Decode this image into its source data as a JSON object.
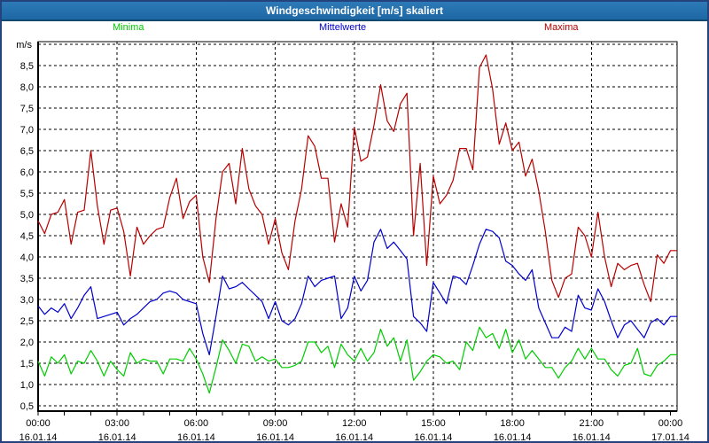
{
  "window": {
    "title": "Windgeschwindigkeit [m/s] skaliert"
  },
  "legend": [
    {
      "label": "Minima",
      "color": "#00cc00"
    },
    {
      "label": "Mittelwerte",
      "color": "#0000cd"
    },
    {
      "label": "Maxima",
      "color": "#b80000"
    }
  ],
  "colors": {
    "titlebar_top": "#2d7ab8",
    "titlebar_bottom": "#1d67a4",
    "outer_border": "#24427c",
    "grid": "#000000",
    "plot_background": "#ffffff"
  },
  "chart_data": {
    "type": "line",
    "title": "Windgeschwindigkeit [m/s] skaliert",
    "ylabel": "m/s",
    "ylim": [
      0.5,
      9.0
    ],
    "ytick_step": 0.5,
    "ytick_labels": [
      "0,5",
      "1,0",
      "1,5",
      "2,0",
      "2,5",
      "3,0",
      "3,5",
      "4,0",
      "4,5",
      "5,0",
      "5,5",
      "6,0",
      "6,5",
      "7,0",
      "7,5",
      "8,0",
      "8,5"
    ],
    "grid": "dashed",
    "legend_position": "top",
    "x_start_hour": 0,
    "x_end_hour": 24,
    "sample_minutes": 15,
    "minor_tick_every_hours": 1,
    "xticks": [
      {
        "hour": 0,
        "time": "00:00",
        "date": "16.01.14"
      },
      {
        "hour": 3,
        "time": "03:00",
        "date": "16.01.14"
      },
      {
        "hour": 6,
        "time": "06:00",
        "date": "16.01.14"
      },
      {
        "hour": 9,
        "time": "09:00",
        "date": "16.01.14"
      },
      {
        "hour": 12,
        "time": "12:00",
        "date": "16.01.14"
      },
      {
        "hour": 15,
        "time": "15:00",
        "date": "16.01.14"
      },
      {
        "hour": 18,
        "time": "18:00",
        "date": "16.01.14"
      },
      {
        "hour": 21,
        "time": "21:00",
        "date": "16.01.14"
      },
      {
        "hour": 24,
        "time": "00:00",
        "date": "17.01.14"
      }
    ],
    "series": [
      {
        "name": "Minima",
        "color": "#00cc00",
        "values": [
          1.55,
          1.2,
          1.65,
          1.5,
          1.7,
          1.25,
          1.55,
          1.5,
          1.8,
          1.55,
          1.2,
          1.55,
          1.35,
          1.2,
          1.75,
          1.5,
          1.6,
          1.55,
          1.55,
          1.25,
          1.6,
          1.6,
          1.55,
          1.85,
          1.6,
          1.25,
          0.8,
          1.4,
          2.05,
          1.8,
          1.5,
          1.95,
          1.9,
          1.55,
          1.65,
          1.55,
          1.6,
          1.4,
          1.4,
          1.45,
          1.55,
          2.0,
          2.0,
          1.75,
          1.9,
          1.4,
          1.95,
          1.7,
          1.55,
          1.85,
          1.55,
          1.75,
          2.3,
          1.9,
          2.1,
          1.55,
          2.05,
          1.1,
          1.3,
          1.55,
          1.7,
          1.65,
          1.5,
          1.55,
          1.35,
          2.0,
          1.8,
          2.35,
          2.1,
          2.2,
          1.85,
          2.3,
          1.75,
          2.05,
          1.6,
          1.8,
          1.6,
          1.4,
          1.4,
          1.15,
          1.4,
          1.55,
          1.85,
          1.6,
          1.85,
          1.6,
          1.6,
          1.35,
          1.2,
          1.45,
          1.5,
          1.85,
          1.25,
          1.2,
          1.45,
          1.55,
          1.7
        ]
      },
      {
        "name": "Mittelwerte",
        "color": "#0000cd",
        "values": [
          2.85,
          2.65,
          2.8,
          2.7,
          2.9,
          2.55,
          2.8,
          3.1,
          3.3,
          2.55,
          2.6,
          2.65,
          2.7,
          2.4,
          2.55,
          2.65,
          2.8,
          2.95,
          3.0,
          3.15,
          3.2,
          3.15,
          3.0,
          2.95,
          2.9,
          2.2,
          1.7,
          2.6,
          3.55,
          3.25,
          3.3,
          3.4,
          3.25,
          3.1,
          2.95,
          2.55,
          2.95,
          2.5,
          2.4,
          2.55,
          2.9,
          3.55,
          3.3,
          3.45,
          3.5,
          3.55,
          2.55,
          2.8,
          3.55,
          3.2,
          3.45,
          4.35,
          4.65,
          4.2,
          4.35,
          4.15,
          3.95,
          2.6,
          2.45,
          2.25,
          3.4,
          3.15,
          2.9,
          3.55,
          3.5,
          3.35,
          3.8,
          4.3,
          4.65,
          4.6,
          4.45,
          3.9,
          3.8,
          3.6,
          3.45,
          3.7,
          2.8,
          2.45,
          2.1,
          2.1,
          2.35,
          2.25,
          3.1,
          2.8,
          2.75,
          3.25,
          2.95,
          2.5,
          2.1,
          2.4,
          2.5,
          2.3,
          2.1,
          2.45,
          2.55,
          2.4,
          2.6
        ]
      },
      {
        "name": "Maxima",
        "color": "#b80000",
        "values": [
          4.85,
          4.55,
          5.0,
          5.05,
          5.35,
          4.3,
          5.05,
          5.1,
          6.5,
          5.2,
          4.3,
          5.1,
          5.15,
          4.6,
          3.55,
          4.7,
          4.3,
          4.5,
          4.65,
          4.7,
          5.4,
          5.85,
          4.9,
          5.3,
          5.45,
          4.0,
          3.4,
          4.9,
          6.0,
          6.2,
          5.25,
          6.55,
          5.6,
          5.2,
          5.0,
          4.3,
          4.9,
          4.1,
          3.7,
          4.85,
          5.6,
          6.85,
          6.6,
          5.85,
          5.85,
          4.35,
          5.25,
          4.7,
          7.05,
          6.25,
          6.35,
          7.1,
          8.05,
          7.2,
          6.95,
          7.6,
          7.85,
          4.5,
          6.2,
          3.8,
          5.9,
          5.25,
          5.45,
          5.8,
          6.55,
          6.55,
          6.05,
          8.45,
          8.75,
          7.95,
          6.65,
          7.15,
          6.5,
          6.7,
          5.9,
          6.3,
          5.55,
          4.6,
          3.45,
          3.05,
          3.5,
          3.6,
          4.7,
          4.5,
          4.0,
          5.05,
          4.0,
          3.3,
          3.85,
          3.7,
          3.8,
          3.85,
          3.35,
          2.95,
          4.05,
          3.85,
          4.15
        ]
      }
    ]
  }
}
